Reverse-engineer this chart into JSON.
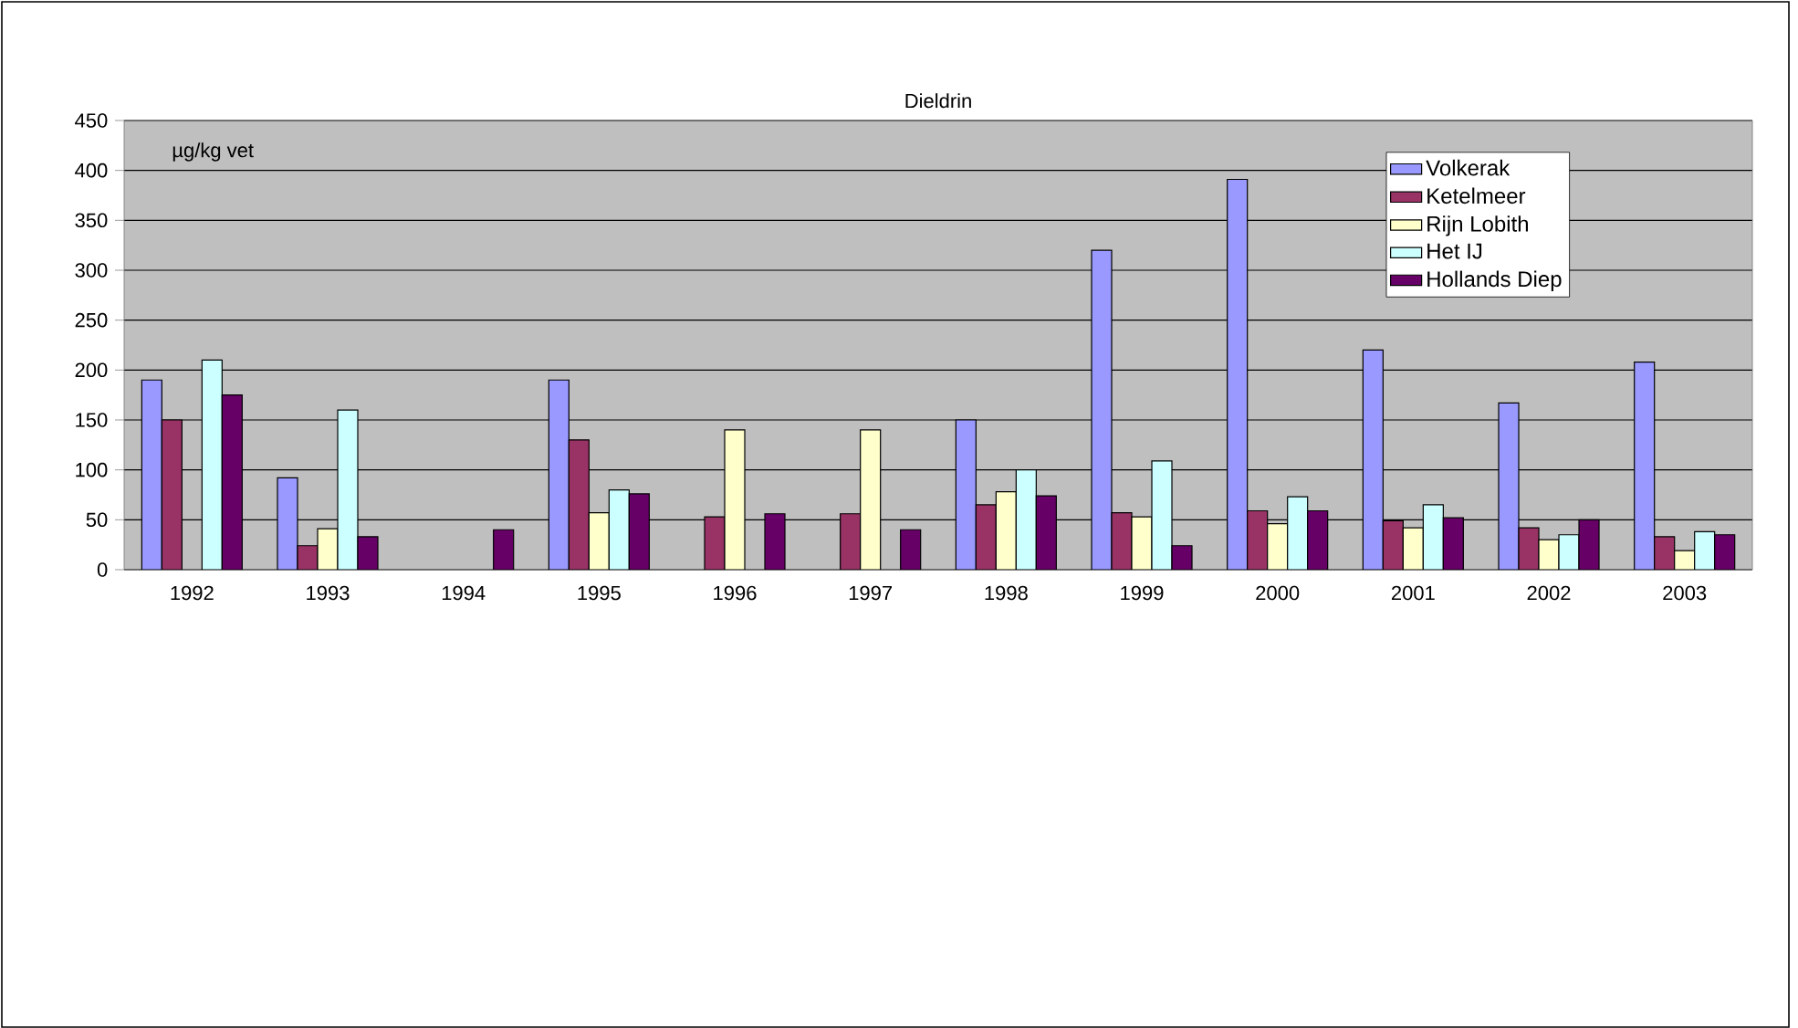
{
  "chart_data": {
    "type": "bar",
    "title": "Dieldrin",
    "annotations": [
      "µg/kg vet"
    ],
    "categories": [
      "1992",
      "1993",
      "1994",
      "1995",
      "1996",
      "1997",
      "1998",
      "1999",
      "2000",
      "2001",
      "2002",
      "2003"
    ],
    "series": [
      {
        "name": "Volkerak",
        "color": "#9999ff",
        "values": [
          190,
          92,
          null,
          190,
          null,
          null,
          150,
          320,
          391,
          220,
          167,
          208
        ]
      },
      {
        "name": "Ketelmeer",
        "color": "#993366",
        "values": [
          150,
          24,
          null,
          130,
          53,
          56,
          65,
          57,
          59,
          49,
          42,
          33
        ]
      },
      {
        "name": "Rijn Lobith",
        "color": "#ffffcc",
        "values": [
          null,
          41,
          null,
          57,
          140,
          140,
          78,
          53,
          46,
          42,
          30,
          19
        ]
      },
      {
        "name": "Het IJ",
        "color": "#ccffff",
        "values": [
          210,
          160,
          null,
          80,
          null,
          null,
          100,
          109,
          73,
          65,
          35,
          38
        ]
      },
      {
        "name": "Hollands Diep",
        "color": "#660066",
        "values": [
          175,
          33,
          40,
          76,
          56,
          40,
          74,
          24,
          59,
          52,
          50,
          35
        ]
      }
    ],
    "ylim": [
      0,
      450
    ],
    "yticks": [
      0,
      50,
      100,
      150,
      200,
      250,
      300,
      350,
      400,
      450
    ],
    "grid": "y",
    "legend": "top right"
  }
}
